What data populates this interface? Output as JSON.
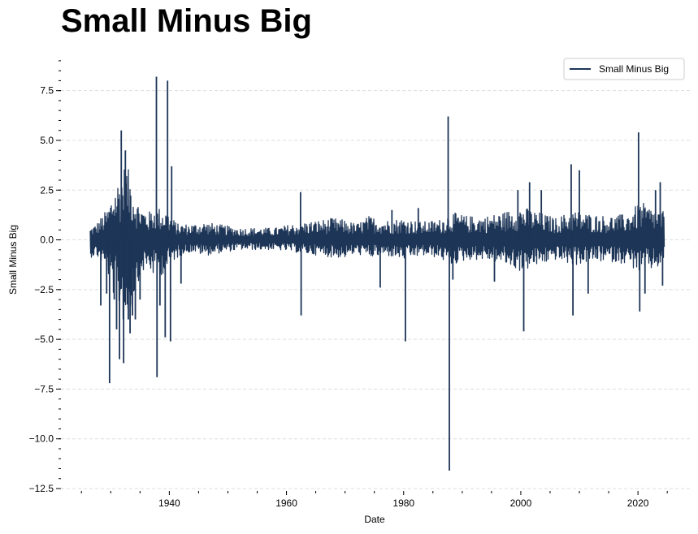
{
  "chart_data": {
    "type": "line",
    "title": "Small Minus Big",
    "xlabel": "Date",
    "ylabel": "Small Minus Big",
    "xlim": [
      1921.5,
      2029
    ],
    "ylim": [
      -12.5,
      9.2
    ],
    "x_ticks": [
      1940,
      1960,
      1980,
      2000,
      2020
    ],
    "x_minor_step": 5,
    "y_ticks": [
      7.5,
      5.0,
      2.5,
      0.0,
      -2.5,
      -5.0,
      -7.5,
      -10.0,
      -12.5
    ],
    "y_tick_labels": [
      "7.5",
      "5.0",
      "2.5",
      "0.0",
      "−2.5",
      "−5.0",
      "−7.5",
      "−10.0",
      "−12.5"
    ],
    "y_minor_step": 0.5,
    "grid": "horizontal-dashed",
    "legend": "top-right",
    "color": "#1d3557",
    "series": [
      {
        "name": "Small Minus Big",
        "x_start": 1926.5,
        "x_end": 2024.5,
        "envelope": [
          [
            1926.5,
            0.6,
            -0.9
          ],
          [
            1927.5,
            0.8,
            -0.8
          ],
          [
            1928.5,
            1.2,
            -1.2
          ],
          [
            1929.5,
            1.6,
            -1.8
          ],
          [
            1930.5,
            2.6,
            -2.8
          ],
          [
            1931.5,
            3.2,
            -3.5
          ],
          [
            1932.5,
            3.9,
            -4.5
          ],
          [
            1933.5,
            3.2,
            -3.6
          ],
          [
            1934.5,
            2.0,
            -2.2
          ],
          [
            1935.5,
            1.6,
            -1.6
          ],
          [
            1936.5,
            1.4,
            -1.5
          ],
          [
            1937.5,
            1.7,
            -1.9
          ],
          [
            1938.5,
            1.6,
            -1.8
          ],
          [
            1939.5,
            1.5,
            -1.6
          ],
          [
            1940.5,
            1.1,
            -1.1
          ],
          [
            1941.5,
            0.8,
            -0.9
          ],
          [
            1942.5,
            0.8,
            -0.7
          ],
          [
            1944,
            0.8,
            -0.6
          ],
          [
            1946,
            0.9,
            -0.8
          ],
          [
            1948,
            0.8,
            -0.7
          ],
          [
            1950,
            0.7,
            -0.6
          ],
          [
            1952,
            0.6,
            -0.5
          ],
          [
            1955,
            0.6,
            -0.5
          ],
          [
            1958,
            0.6,
            -0.5
          ],
          [
            1961,
            0.8,
            -0.6
          ],
          [
            1963,
            0.9,
            -0.7
          ],
          [
            1966,
            1.0,
            -0.8
          ],
          [
            1968,
            1.1,
            -0.9
          ],
          [
            1970,
            1.0,
            -0.9
          ],
          [
            1972,
            0.8,
            -0.7
          ],
          [
            1974,
            1.2,
            -0.9
          ],
          [
            1977,
            1.0,
            -0.8
          ],
          [
            1980,
            1.1,
            -1.0
          ],
          [
            1983,
            0.9,
            -0.8
          ],
          [
            1986,
            1.0,
            -0.9
          ],
          [
            1988,
            1.4,
            -1.3
          ],
          [
            1991,
            1.2,
            -1.0
          ],
          [
            1994,
            1.2,
            -1.0
          ],
          [
            1997,
            1.4,
            -1.2
          ],
          [
            2000,
            1.7,
            -1.6
          ],
          [
            2003,
            1.4,
            -1.3
          ],
          [
            2006,
            1.1,
            -1.0
          ],
          [
            2009,
            1.5,
            -1.3
          ],
          [
            2012,
            1.3,
            -1.1
          ],
          [
            2015,
            1.2,
            -1.1
          ],
          [
            2018,
            1.3,
            -1.2
          ],
          [
            2020.5,
            1.9,
            -1.7
          ],
          [
            2022.5,
            1.6,
            -1.5
          ],
          [
            2024.5,
            1.4,
            -1.3
          ]
        ],
        "spikes": [
          [
            1926.6,
            -0.7
          ],
          [
            1928.3,
            -3.3
          ],
          [
            1929.3,
            -2.7
          ],
          [
            1929.8,
            -7.2
          ],
          [
            1930.6,
            -3.0
          ],
          [
            1931.0,
            -4.5
          ],
          [
            1931.5,
            -6.0
          ],
          [
            1931.8,
            5.5
          ],
          [
            1932.2,
            -6.2
          ],
          [
            1932.5,
            4.5
          ],
          [
            1933.0,
            -4.0
          ],
          [
            1933.3,
            -4.7
          ],
          [
            1933.7,
            -3.8
          ],
          [
            1934.2,
            -4.0
          ],
          [
            1935.0,
            -3.0
          ],
          [
            1937.8,
            8.2
          ],
          [
            1937.9,
            -6.9
          ],
          [
            1938.4,
            -3.3
          ],
          [
            1939.3,
            -4.9
          ],
          [
            1939.7,
            8.0
          ],
          [
            1940.2,
            -5.1
          ],
          [
            1940.4,
            3.7
          ],
          [
            1942.0,
            -2.2
          ],
          [
            1962.4,
            2.4
          ],
          [
            1962.5,
            -3.8
          ],
          [
            1976.0,
            -2.4
          ],
          [
            1978.0,
            1.5
          ],
          [
            1980.3,
            -5.1
          ],
          [
            1982.5,
            1.6
          ],
          [
            1987.6,
            6.2
          ],
          [
            1987.8,
            -11.6
          ],
          [
            1988.4,
            -2.0
          ],
          [
            1995.5,
            -2.1
          ],
          [
            1999.5,
            2.5
          ],
          [
            2000.5,
            -4.6
          ],
          [
            2001.5,
            2.9
          ],
          [
            2003.5,
            2.5
          ],
          [
            2008.6,
            3.8
          ],
          [
            2008.9,
            -3.8
          ],
          [
            2010.0,
            3.5
          ],
          [
            2011.5,
            -2.7
          ],
          [
            2020.1,
            5.4
          ],
          [
            2020.3,
            -3.6
          ],
          [
            2021.2,
            -2.7
          ],
          [
            2023.0,
            2.5
          ],
          [
            2023.8,
            2.9
          ],
          [
            2024.2,
            -2.3
          ]
        ]
      }
    ]
  }
}
